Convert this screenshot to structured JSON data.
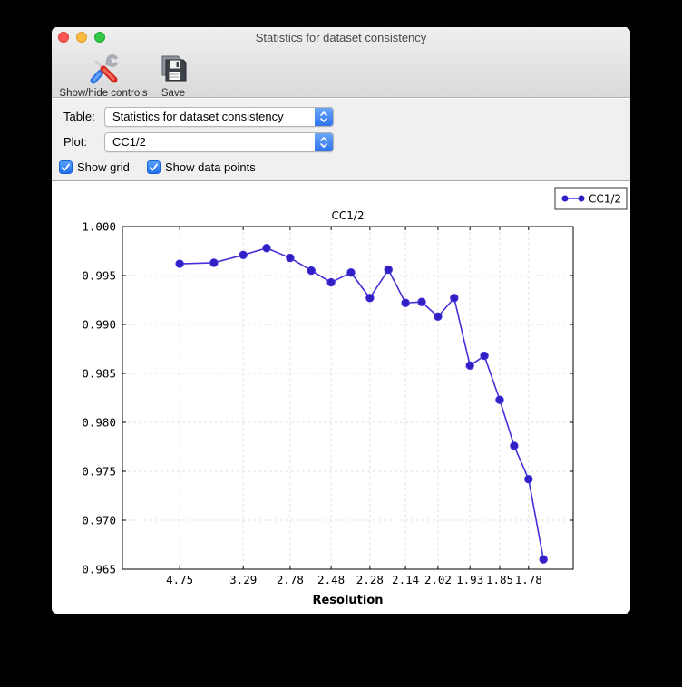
{
  "window": {
    "title": "Statistics for dataset consistency"
  },
  "toolbar": {
    "items": [
      {
        "label": "Show/hide controls",
        "icon": "tools-icon"
      },
      {
        "label": "Save",
        "icon": "floppy-icon"
      }
    ]
  },
  "controls": {
    "table": {
      "label": "Table:",
      "value": "Statistics for dataset consistency"
    },
    "plot": {
      "label": "Plot:",
      "value": "CC1/2"
    },
    "checkboxes": [
      {
        "label": "Show grid",
        "checked": true
      },
      {
        "label": "Show data points",
        "checked": true
      }
    ]
  },
  "colors": {
    "accent_blue": "#3b7df5",
    "traffic_red": "#fc5753",
    "traffic_yellow": "#fdbc40",
    "traffic_green": "#33c748",
    "series_line": "#4431da",
    "series_marker": "#2f1fc4",
    "gridline": "#e2e2e2"
  },
  "chart_data": {
    "type": "line",
    "title": "CC1/2",
    "xlabel": "Resolution",
    "ylabel": "",
    "grid": true,
    "markers": true,
    "legend": {
      "label": "CC1/2",
      "position": "top-right"
    },
    "ylim": [
      0.965,
      1.0
    ],
    "y_ticks": [
      "1.000",
      "0.995",
      "0.990",
      "0.985",
      "0.980",
      "0.975",
      "0.970",
      "0.965"
    ],
    "x_ticks": [
      {
        "label": "4.75",
        "f": 0.127
      },
      {
        "label": "3.29",
        "f": 0.268
      },
      {
        "label": "2.78",
        "f": 0.372
      },
      {
        "label": "2.48",
        "f": 0.463
      },
      {
        "label": "2.28",
        "f": 0.549
      },
      {
        "label": "2.14",
        "f": 0.628
      },
      {
        "label": "2.02",
        "f": 0.7
      },
      {
        "label": "1.93",
        "f": 0.771
      },
      {
        "label": "1.85",
        "f": 0.837
      },
      {
        "label": "1.78",
        "f": 0.901
      }
    ],
    "series": [
      {
        "name": "CC1/2",
        "color": "#4431da",
        "marker_color": "#2f1fc4",
        "points": [
          {
            "f": 0.127,
            "v": 0.9962
          },
          {
            "f": 0.203,
            "v": 0.9963
          },
          {
            "f": 0.268,
            "v": 0.9971
          },
          {
            "f": 0.32,
            "v": 0.9978
          },
          {
            "f": 0.372,
            "v": 0.9968
          },
          {
            "f": 0.419,
            "v": 0.9955
          },
          {
            "f": 0.463,
            "v": 0.9943
          },
          {
            "f": 0.507,
            "v": 0.9953
          },
          {
            "f": 0.549,
            "v": 0.9927
          },
          {
            "f": 0.59,
            "v": 0.9956
          },
          {
            "f": 0.628,
            "v": 0.9922
          },
          {
            "f": 0.664,
            "v": 0.9923
          },
          {
            "f": 0.7,
            "v": 0.9908
          },
          {
            "f": 0.736,
            "v": 0.9927
          },
          {
            "f": 0.771,
            "v": 0.9858
          },
          {
            "f": 0.803,
            "v": 0.9868
          },
          {
            "f": 0.837,
            "v": 0.9823
          },
          {
            "f": 0.869,
            "v": 0.9776
          },
          {
            "f": 0.901,
            "v": 0.9742
          },
          {
            "f": 0.934,
            "v": 0.966
          }
        ]
      }
    ]
  }
}
